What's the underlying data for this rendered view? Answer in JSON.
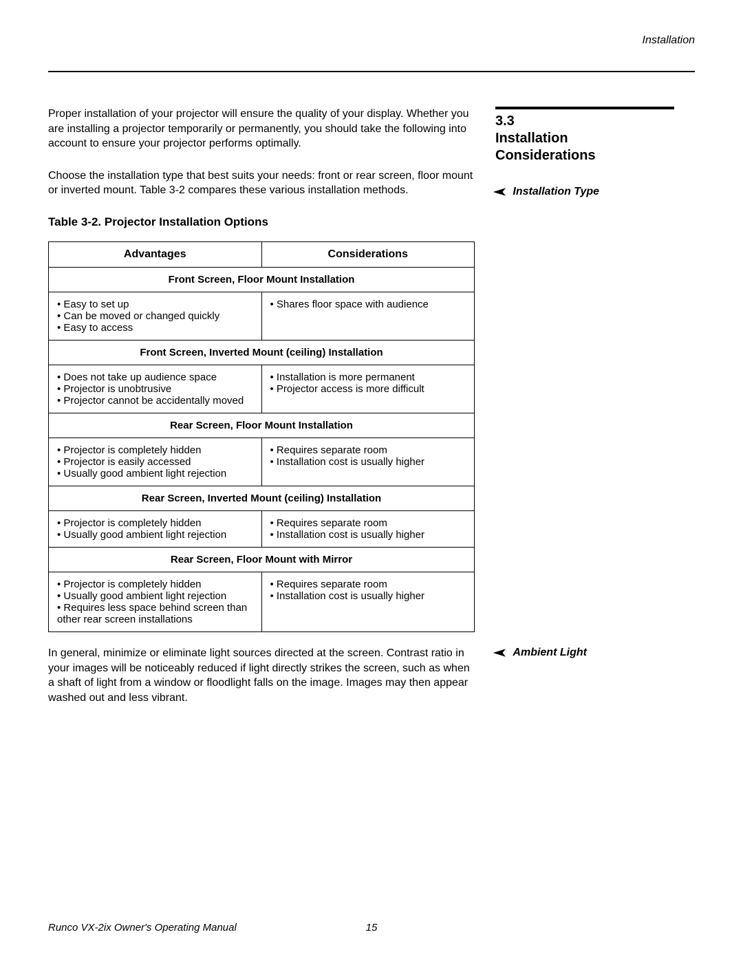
{
  "header": {
    "chapter_label": "Installation"
  },
  "section": {
    "number": "3.3",
    "title_line1": "Installation",
    "title_line2": "Considerations"
  },
  "sidebar": {
    "annotation1": "Installation Type",
    "annotation2": "Ambient Light",
    "arrow": "➤"
  },
  "intro": {
    "para1": "Proper installation of your projector will ensure the quality of your display. Whether you are installing a projector temporarily or permanently, you should take the following into account to ensure your projector performs optimally.",
    "para2": "Choose the installation type that best suits your needs: front or rear screen, floor mount or inverted mount. Table 3-2 compares these various installation methods."
  },
  "table": {
    "title": "Table 3-2. Projector Installation Options",
    "col1_header": "Advantages",
    "col2_header": "Considerations",
    "sections": [
      {
        "header": "Front Screen, Floor Mount Installation",
        "advantages": [
          "Easy to set up",
          "Can be moved or changed quickly",
          "Easy to access"
        ],
        "considerations": [
          "Shares floor space with audience"
        ]
      },
      {
        "header": "Front Screen, Inverted Mount (ceiling) Installation",
        "advantages": [
          "Does not take up audience space",
          "Projector is unobtrusive",
          "Projector cannot be accidentally moved"
        ],
        "considerations": [
          "Installation is more permanent",
          "Projector access is more difficult"
        ]
      },
      {
        "header": "Rear Screen, Floor Mount Installation",
        "advantages": [
          "Projector is completely hidden",
          "Projector is easily accessed",
          "Usually good ambient light rejection"
        ],
        "considerations": [
          "Requires separate room",
          "Installation cost is usually higher"
        ]
      },
      {
        "header": "Rear Screen, Inverted Mount (ceiling) Installation",
        "advantages": [
          "Projector is completely hidden",
          "Usually good ambient light rejection"
        ],
        "considerations": [
          "Requires separate room",
          "Installation cost is usually higher"
        ]
      },
      {
        "header": "Rear Screen, Floor Mount with Mirror",
        "advantages": [
          "Projector is completely hidden",
          "Usually good ambient light rejection",
          "Requires less space behind screen than other rear screen installations"
        ],
        "considerations": [
          "Requires separate room",
          "Installation cost is usually higher"
        ]
      }
    ]
  },
  "ambient": {
    "text": "In general, minimize or eliminate light sources directed at the screen. Contrast ratio in your images will be noticeably reduced if light directly strikes the screen, such as when a shaft of light from a window or floodlight falls on the image. Images may then appear washed out and less vibrant."
  },
  "footer": {
    "manual_title": "Runco VX-2ix Owner's Operating Manual",
    "page_number": "15"
  },
  "styling": {
    "text_color": "#000000",
    "background_color": "#ffffff",
    "border_color": "#000000",
    "header_rule_width": 2,
    "side_rule_width": 4,
    "body_fontsize": 16,
    "table_fontsize": 15,
    "heading_fontsize": 20,
    "footer_fontsize": 15
  }
}
